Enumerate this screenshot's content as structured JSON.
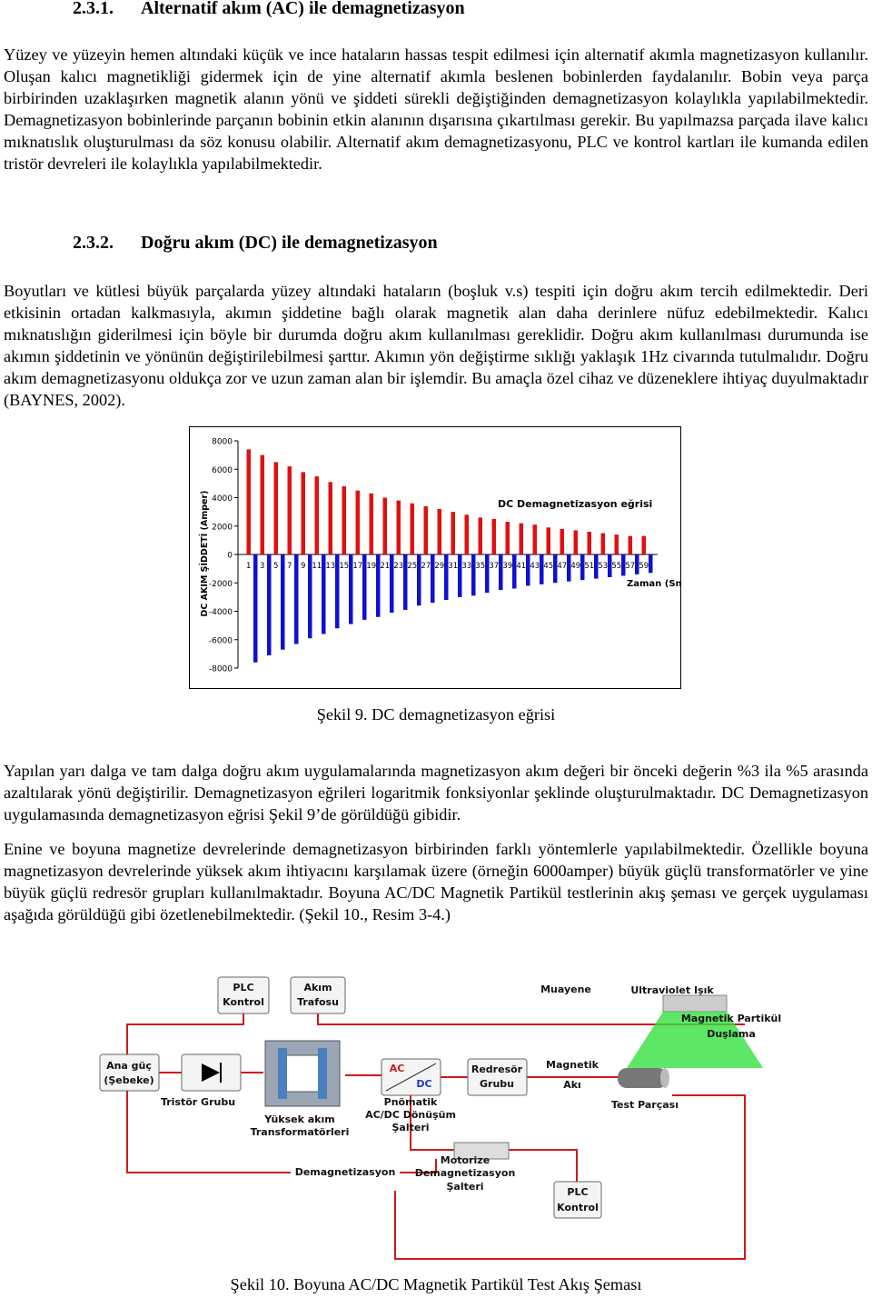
{
  "section1": {
    "number": "2.3.1.",
    "title": "Alternatif akım (AC) ile demagnetizasyon",
    "paragraph": "Yüzey ve yüzeyin hemen altındaki küçük ve ince hataların hassas tespit edilmesi için alternatif akımla magnetizasyon kullanılır. Oluşan kalıcı magnetikliği gidermek için de yine alternatif akımla beslenen bobinlerden faydalanılır. Bobin veya parça birbirinden uzaklaşırken magnetik alanın yönü ve şiddeti sürekli değiştiğinden demagnetizasyon kolaylıkla yapılabilmektedir. Demagnetizasyon bobinlerinde parçanın bobinin etkin alanının dışarısına çıkartılması gerekir. Bu yapılmazsa parçada ilave kalıcı mıknatıslık oluşturulması da söz konusu olabilir. Alternatif akım demagnetizasyonu, PLC ve kontrol kartları ile kumanda edilen tristör devreleri ile kolaylıkla yapılabilmektedir."
  },
  "section2": {
    "number": "2.3.2.",
    "title": "Doğru akım (DC) ile demagnetizasyon",
    "paragraph": "Boyutları ve kütlesi büyük parçalarda yüzey altındaki hataların (boşluk v.s) tespiti için doğru akım tercih edilmektedir. Deri etkisinin ortadan kalkmasıyla, akımın şiddetine bağlı olarak magnetik alan daha derinlere nüfuz edebilmektedir. Kalıcı mıknatıslığın giderilmesi için böyle bir durumda doğru akım kullanılması gereklidir. Doğru akım kullanılması durumunda ise akımın şiddetinin ve yönünün değiştirilebilmesi şarttır. Akımın yön değiştirme sıklığı yaklaşık 1Hz civarında tutulmalıdır. Doğru akım demagnetizasyonu oldukça zor ve uzun zaman alan bir işlemdir. Bu amaçla özel cihaz ve düzeneklere ihtiyaç duyulmaktadır (BAYNES, 2002)."
  },
  "chart_data": {
    "type": "bar",
    "annotation": "DC Demagnetizasyon eğrisi",
    "y_label": "DC AKIM ŞİDDETİ (Amper)",
    "x_label": "Zaman (Sn)",
    "categories": [
      1,
      null,
      3,
      null,
      5,
      null,
      7,
      null,
      9,
      null,
      11,
      null,
      13,
      null,
      15,
      null,
      17,
      null,
      19,
      null,
      21,
      null,
      23,
      null,
      25,
      null,
      27,
      null,
      29,
      null,
      31,
      null,
      33,
      null,
      35,
      null,
      37,
      null,
      39,
      null,
      41,
      null,
      43,
      null,
      45,
      null,
      47,
      null,
      49,
      null,
      51,
      null,
      53,
      null,
      55,
      null,
      57,
      null,
      59,
      null
    ],
    "values": [
      7400,
      -7600,
      7000,
      -7100,
      6500,
      -6700,
      6200,
      -6300,
      5800,
      -5900,
      5500,
      -5600,
      5100,
      -5200,
      4800,
      -4900,
      4500,
      -4600,
      4300,
      -4400,
      4000,
      -4100,
      3800,
      -3900,
      3600,
      -3600,
      3400,
      -3400,
      3200,
      -3200,
      3000,
      -3000,
      2800,
      -2900,
      2600,
      -2700,
      2500,
      -2500,
      2300,
      -2400,
      2200,
      -2200,
      2100,
      -2100,
      1900,
      -2000,
      1800,
      -1900,
      1700,
      -1800,
      1600,
      -1700,
      1500,
      -1600,
      1400,
      -1500,
      1300,
      -1400,
      1300,
      -1300
    ],
    "color_positive": "#e01010",
    "color_negative": "#1010d0",
    "ylim": [
      -8000,
      8000
    ],
    "yticks": [
      -8000,
      -6000,
      -4000,
      -2000,
      0,
      2000,
      4000,
      6000,
      8000
    ]
  },
  "figure9": {
    "caption": "Şekil 9. DC demagnetizasyon eğrisi"
  },
  "paragraph3": "Yapılan yarı dalga ve tam dalga doğru akım uygulamalarında magnetizasyon akım değeri bir önceki değerin %3 ila %5 arasında azaltılarak yönü değiştirilir. Demagnetizasyon eğrileri logaritmik fonksiyonlar şeklinde oluşturulmaktadır. DC Demagnetizasyon uygulamasında demagnetizasyon eğrisi Şekil 9’de görüldüğü gibidir.",
  "paragraph4": "Enine ve boyuna magnetize devrelerinde demagnetizasyon birbirinden farklı yöntemlerle yapılabilmektedir. Özellikle boyuna magnetizasyon devrelerinde yüksek akım ihtiyacını karşılamak üzere (örneğin 6000amper) büyük güçlü transformatörler ve yine büyük güçlü redresör grupları kullanılmaktadır. Boyuna AC/DC Magnetik Partikül testlerinin akış şeması ve gerçek uygulaması aşağıda görüldüğü gibi özetlenebilmektedir. (Şekil 10., Resim 3-4.)",
  "diagram": {
    "nodes": [
      {
        "label": [
          "PLC",
          "Kontrol"
        ]
      },
      {
        "label": [
          "Akım",
          "Trafosu"
        ]
      },
      {
        "label": [
          "Ana güç",
          "(Şebeke)"
        ]
      },
      {
        "label": [
          "Tristör Grubu"
        ]
      },
      {
        "label": [
          "Yüksek akım",
          "Transformatörleri"
        ]
      },
      {
        "label": [
          "AC",
          "DC"
        ]
      },
      {
        "label": [
          "Pnömatik",
          "AC/DC Dönüşüm",
          "Şalteri"
        ]
      },
      {
        "label": [
          "Redresör",
          "Grubu"
        ]
      },
      {
        "label": [
          "Magnetik",
          "Akı"
        ]
      },
      {
        "label": [
          "Test Parçası"
        ]
      },
      {
        "label": [
          "Muayene"
        ]
      },
      {
        "label": [
          "Ultraviolet Işık"
        ]
      },
      {
        "label": [
          "Magnetik Partikül",
          "Duşlama"
        ]
      },
      {
        "label": [
          "Demagnetizasyon"
        ]
      },
      {
        "label": [
          "Motorize",
          "Demagnetizasyon",
          "Şalteri"
        ]
      },
      {
        "label": [
          "PLC",
          "Kontrol"
        ]
      }
    ],
    "caption": "Şekil 10. Boyuna AC/DC Magnetik Partikül Test Akış Şeması"
  }
}
